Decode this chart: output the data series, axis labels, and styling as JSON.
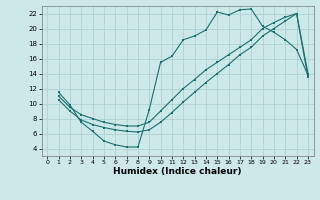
{
  "bg_color": "#cce8e8",
  "grid_color": "#aacece",
  "line_color": "#1a7070",
  "xlim": [
    -0.5,
    23.5
  ],
  "ylim": [
    3,
    23
  ],
  "xlabel": "Humidex (Indice chaleur)",
  "xtick_vals": [
    0,
    1,
    2,
    3,
    4,
    5,
    6,
    7,
    8,
    9,
    10,
    11,
    12,
    13,
    14,
    15,
    16,
    17,
    18,
    19,
    20,
    21,
    22,
    23
  ],
  "ytick_vals": [
    4,
    6,
    8,
    10,
    12,
    14,
    16,
    18,
    20,
    22
  ],
  "line1_x": [
    1,
    2,
    3,
    4,
    5,
    6,
    7,
    8,
    9,
    10,
    11,
    12,
    13,
    14,
    15,
    16,
    17,
    18,
    19,
    20,
    21,
    22,
    23
  ],
  "line1_y": [
    11.5,
    9.8,
    7.5,
    6.3,
    5.0,
    4.5,
    4.2,
    4.2,
    9.2,
    15.5,
    16.3,
    18.5,
    19.0,
    19.8,
    22.2,
    21.8,
    22.5,
    22.6,
    20.3,
    19.5,
    18.5,
    17.2,
    13.8
  ],
  "line2_x": [
    1,
    2,
    3,
    4,
    5,
    6,
    7,
    8,
    9,
    10,
    11,
    12,
    13,
    14,
    15,
    16,
    17,
    18,
    19,
    20,
    21,
    22,
    23
  ],
  "line2_y": [
    11.0,
    9.5,
    8.5,
    8.0,
    7.5,
    7.2,
    7.0,
    7.0,
    7.5,
    9.0,
    10.5,
    12.0,
    13.2,
    14.5,
    15.5,
    16.5,
    17.5,
    18.5,
    20.0,
    20.8,
    21.5,
    22.0,
    14.0
  ],
  "line3_x": [
    1,
    2,
    3,
    4,
    5,
    6,
    7,
    8,
    9,
    10,
    11,
    12,
    13,
    14,
    15,
    16,
    17,
    18,
    19,
    20,
    21,
    22,
    23
  ],
  "line3_y": [
    10.5,
    9.0,
    7.8,
    7.2,
    6.8,
    6.5,
    6.3,
    6.2,
    6.5,
    7.5,
    8.8,
    10.2,
    11.5,
    12.8,
    14.0,
    15.2,
    16.5,
    17.5,
    19.0,
    20.0,
    21.0,
    22.0,
    13.5
  ]
}
